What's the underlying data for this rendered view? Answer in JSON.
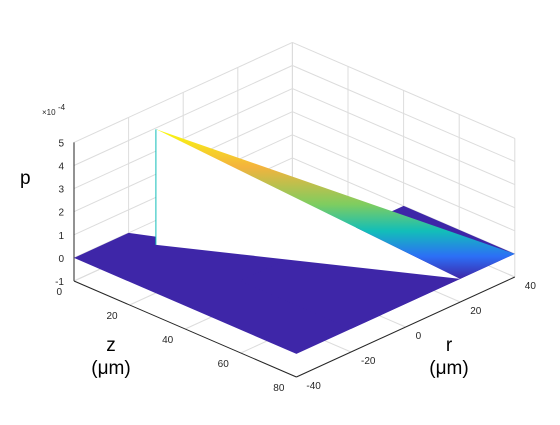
{
  "chart_data": {
    "type": "surface",
    "zlabel": "p",
    "exponent_label": "×10",
    "exponent_power": "-4",
    "xlabel_line1": "z",
    "xlabel_line2": "(μm)",
    "ylabel_line1": "r",
    "ylabel_line2": "(μm)",
    "xlim": [
      0,
      80
    ],
    "ylim": [
      -40,
      40
    ],
    "zlim": [
      -1,
      5
    ],
    "x_ticks": [
      "0",
      "20",
      "40",
      "60",
      "80"
    ],
    "y_ticks": [
      "-40",
      "-20",
      "0",
      "20",
      "40"
    ],
    "z_ticks": [
      "-1",
      "0",
      "1",
      "2",
      "3",
      "4",
      "5"
    ],
    "z_scale": "1e-4",
    "grid": true,
    "colormap": "parula",
    "colors": [
      "#3e26a8",
      "#2c6ff6",
      "#12beb9",
      "#7fcd5f",
      "#f4b33d",
      "#f9fb0e"
    ],
    "surface": {
      "description_points": [
        {
          "z": 0,
          "r": -40,
          "p": 0
        },
        {
          "z": 0,
          "r": 40,
          "p": 0
        },
        {
          "z": 80,
          "r": -40,
          "p": 0
        },
        {
          "z": 80,
          "r": 40,
          "p": 0
        }
      ],
      "ridge": [
        {
          "z": 10,
          "r": -40,
          "p": 5
        },
        {
          "z": 10,
          "r": -20,
          "p": 5
        },
        {
          "z": 80,
          "r": -20,
          "p": 0
        },
        {
          "z": 80,
          "r": 40,
          "p": 0
        }
      ]
    }
  }
}
